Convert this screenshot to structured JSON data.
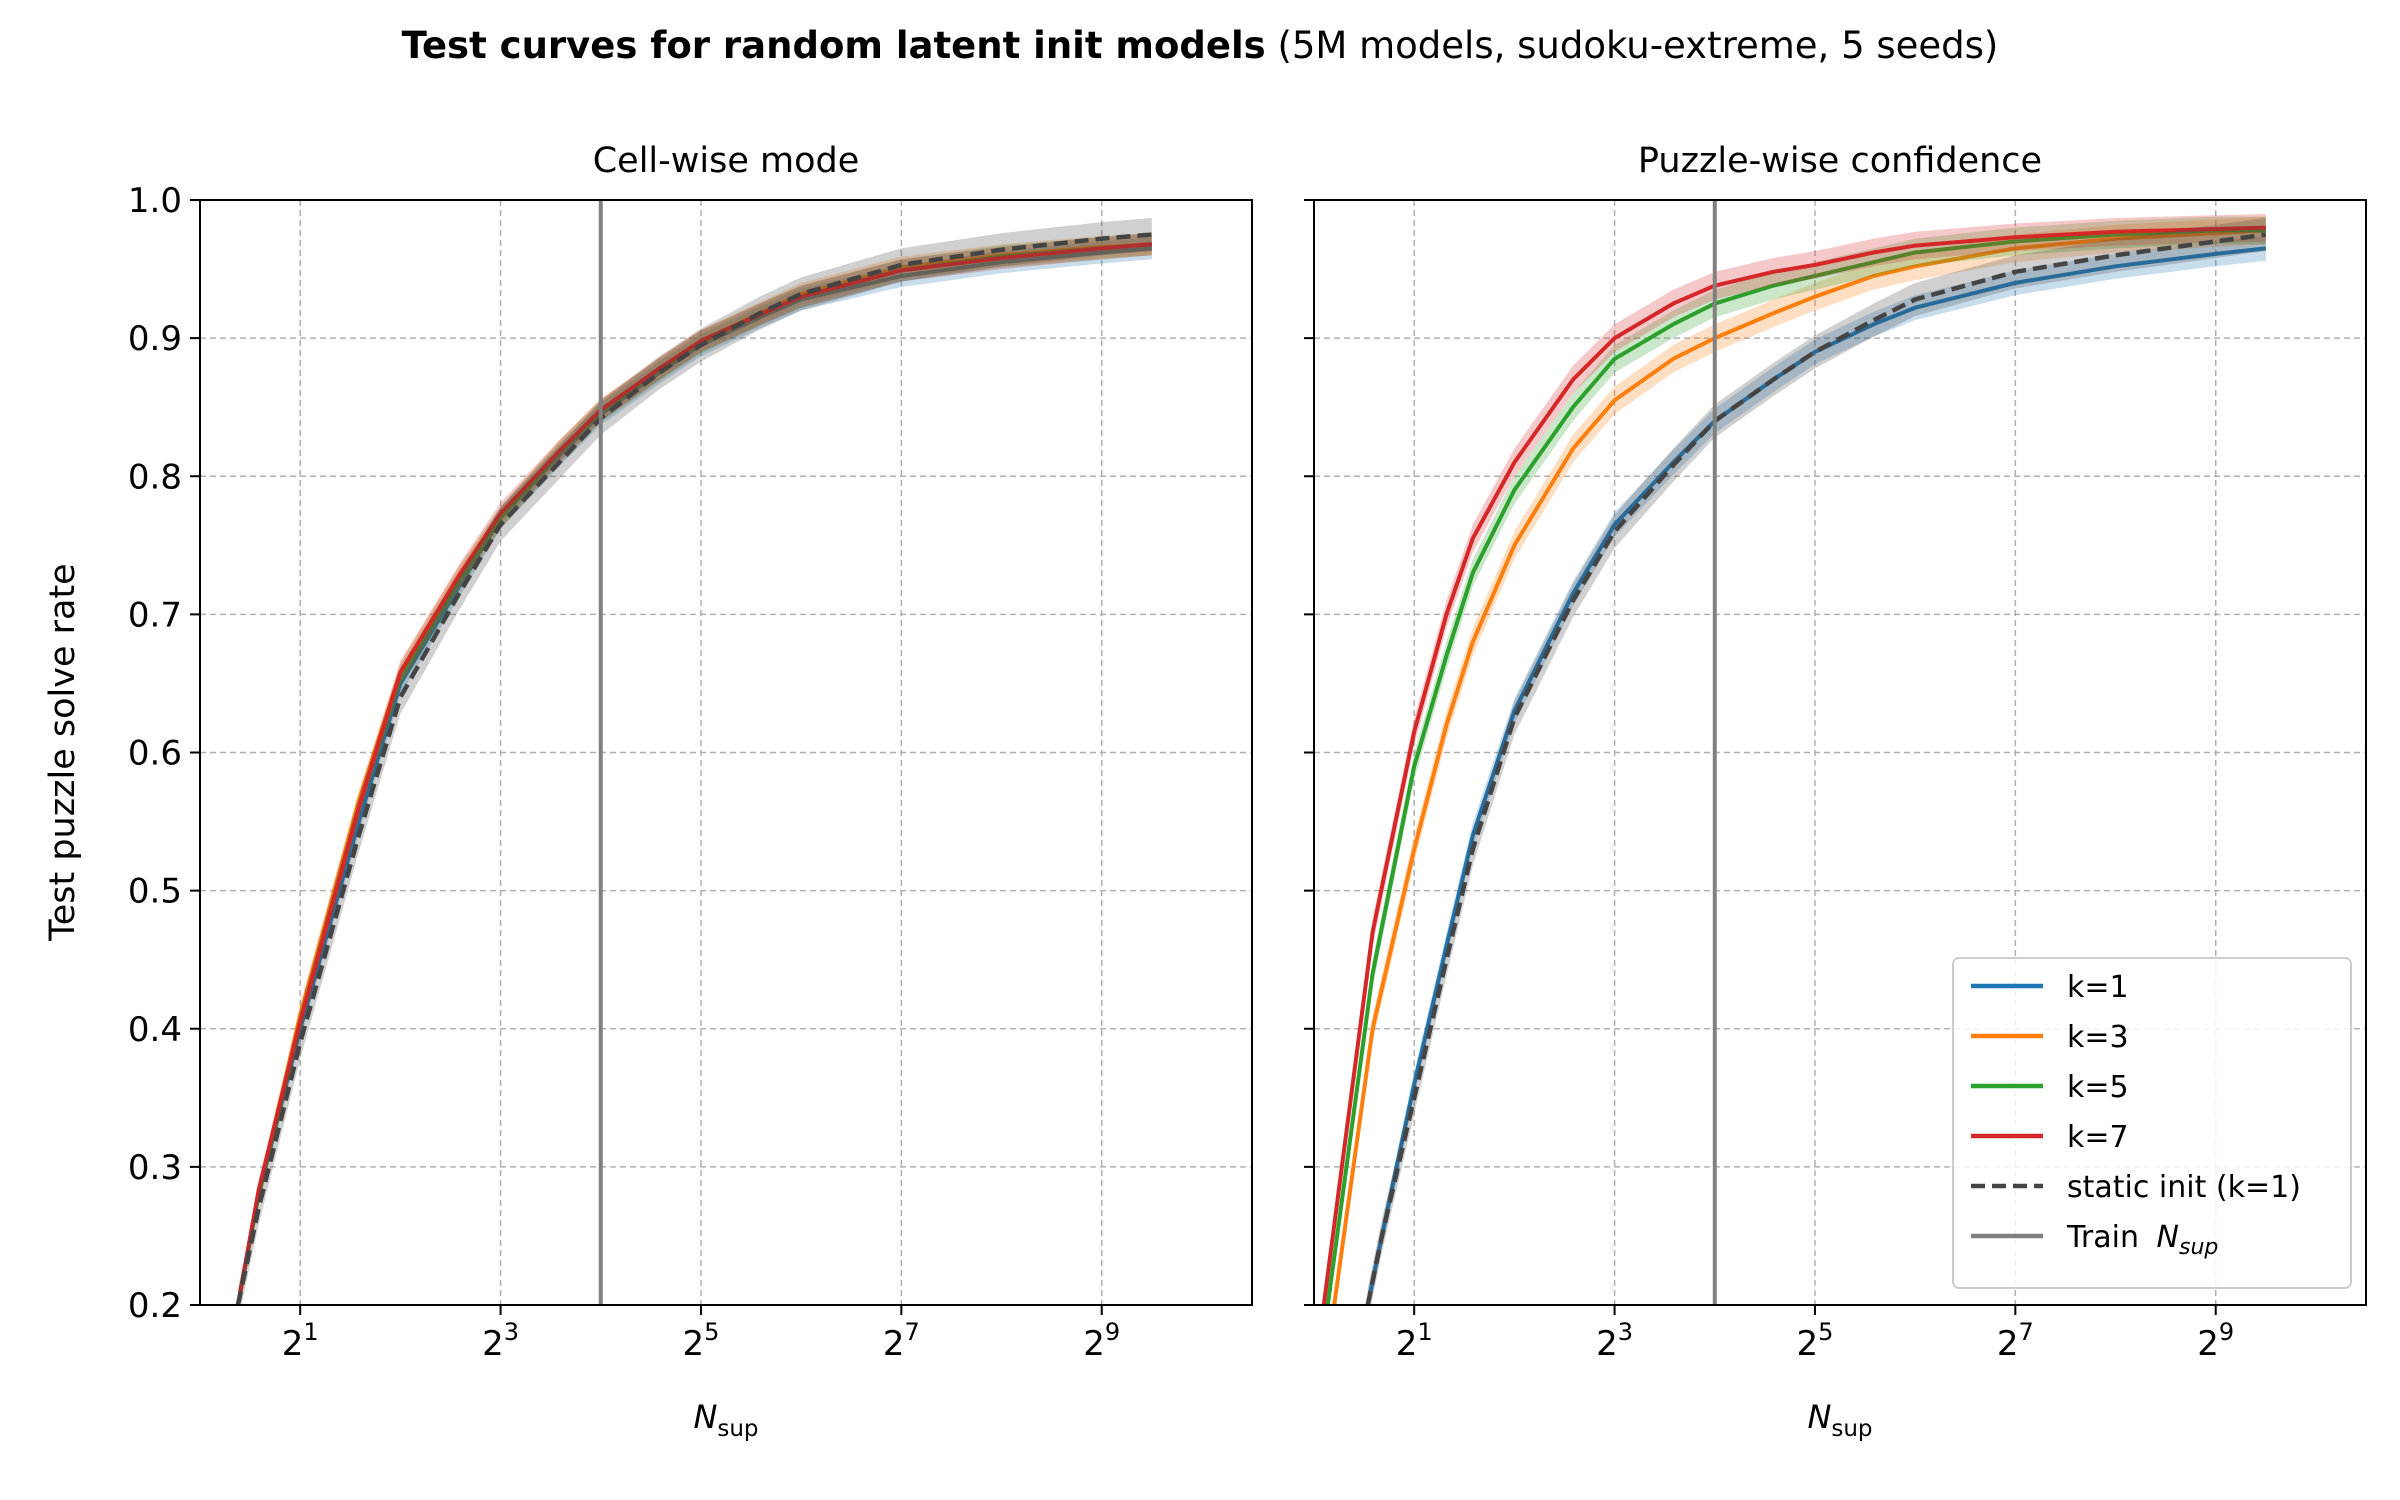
{
  "figure": {
    "title_bold": "Test curves for random latent init models",
    "title_rest": " (5M models, sudoku-extreme, 5 seeds)",
    "shared_ylabel": "Test puzzle solve rate"
  },
  "colors": {
    "k1": "#1f77b4",
    "k3": "#ff7f0e",
    "k5": "#2ca02c",
    "k7": "#d62728",
    "static": "#444444",
    "train_line": "#808080",
    "grid": "#b0b0b0"
  },
  "chart_data": [
    {
      "type": "line",
      "title": "Cell-wise mode",
      "xlabel_main": "N",
      "xlabel_sub": "sup",
      "ylabel": "Test puzzle solve rate",
      "x_scale": "log2",
      "xlim": [
        1.0,
        1448
      ],
      "ylim": [
        0.2,
        1.0
      ],
      "xticks": [
        {
          "value": 2,
          "base": "2",
          "exp": "1"
        },
        {
          "value": 8,
          "base": "2",
          "exp": "3"
        },
        {
          "value": 32,
          "base": "2",
          "exp": "5"
        },
        {
          "value": 128,
          "base": "2",
          "exp": "7"
        },
        {
          "value": 512,
          "base": "2",
          "exp": "9"
        }
      ],
      "yticks": [
        "0.2",
        "0.3",
        "0.4",
        "0.5",
        "0.6",
        "0.7",
        "0.8",
        "0.9",
        "1.0"
      ],
      "grid": true,
      "vline": {
        "x": 16,
        "name": "Train N_sup"
      },
      "x": [
        1.3,
        1.5,
        2,
        3,
        4,
        6,
        8,
        12,
        16,
        24,
        32,
        48,
        64,
        128,
        256,
        512,
        724
      ],
      "series": [
        {
          "name": "k=1",
          "key": "k1",
          "dashed": false,
          "band": 0.008,
          "values": [
            0.2,
            0.28,
            0.4,
            0.55,
            0.65,
            0.72,
            0.77,
            0.815,
            0.845,
            0.875,
            0.895,
            0.915,
            0.928,
            0.945,
            0.955,
            0.962,
            0.965
          ]
        },
        {
          "name": "k=3",
          "key": "k3",
          "dashed": false,
          "band": 0.008,
          "values": [
            0.2,
            0.28,
            0.41,
            0.565,
            0.658,
            0.727,
            0.77,
            0.818,
            0.848,
            0.878,
            0.898,
            0.918,
            0.932,
            0.951,
            0.96,
            0.966,
            0.968
          ]
        },
        {
          "name": "k=5",
          "key": "k5",
          "dashed": false,
          "band": 0.008,
          "values": [
            0.2,
            0.28,
            0.405,
            0.56,
            0.655,
            0.725,
            0.77,
            0.817,
            0.847,
            0.877,
            0.897,
            0.917,
            0.93,
            0.949,
            0.959,
            0.965,
            0.968
          ]
        },
        {
          "name": "k=7",
          "key": "k7",
          "dashed": false,
          "band": 0.008,
          "values": [
            0.2,
            0.283,
            0.405,
            0.56,
            0.658,
            0.728,
            0.773,
            0.818,
            0.848,
            0.878,
            0.898,
            0.917,
            0.93,
            0.949,
            0.958,
            0.965,
            0.968
          ]
        },
        {
          "name": "static init (k=1)",
          "key": "static",
          "dashed": true,
          "band": 0.012,
          "values": [
            0.2,
            0.27,
            0.39,
            0.54,
            0.64,
            0.715,
            0.765,
            0.81,
            0.842,
            0.875,
            0.895,
            0.918,
            0.932,
            0.953,
            0.964,
            0.972,
            0.975
          ]
        }
      ]
    },
    {
      "type": "line",
      "title": "Puzzle-wise confidence",
      "xlabel_main": "N",
      "xlabel_sub": "sup",
      "x_scale": "log2",
      "xlim": [
        1.0,
        1448
      ],
      "ylim": [
        0.2,
        1.0
      ],
      "xticks": [
        {
          "value": 2,
          "base": "2",
          "exp": "1"
        },
        {
          "value": 8,
          "base": "2",
          "exp": "3"
        },
        {
          "value": 32,
          "base": "2",
          "exp": "5"
        },
        {
          "value": 128,
          "base": "2",
          "exp": "7"
        },
        {
          "value": 512,
          "base": "2",
          "exp": "9"
        }
      ],
      "yticks": [
        "0.2",
        "0.3",
        "0.4",
        "0.5",
        "0.6",
        "0.7",
        "0.8",
        "0.9",
        "1.0"
      ],
      "grid": true,
      "vline": {
        "x": 16,
        "name": "Train N_sup"
      },
      "legend": {
        "placement": "lower right",
        "train_label": "Train ",
        "train_label_italic": "N",
        "train_label_sub": "sup"
      },
      "series": [
        {
          "name": "k=1",
          "key": "k1",
          "dashed": false,
          "band": 0.009,
          "x": [
            1.45,
            1.6,
            2,
            2.5,
            3,
            4,
            6,
            8,
            12,
            16,
            24,
            32,
            48,
            64,
            128,
            256,
            512,
            724
          ],
          "values": [
            0.2,
            0.25,
            0.36,
            0.46,
            0.54,
            0.63,
            0.715,
            0.765,
            0.81,
            0.84,
            0.87,
            0.89,
            0.91,
            0.922,
            0.94,
            0.952,
            0.961,
            0.965
          ]
        },
        {
          "name": "k=3",
          "key": "k3",
          "dashed": false,
          "band": 0.01,
          "x": [
            1.15,
            1.5,
            2,
            2.5,
            3,
            4,
            6,
            8,
            12,
            16,
            24,
            32,
            48,
            64,
            128,
            256,
            512,
            724
          ],
          "values": [
            0.2,
            0.4,
            0.53,
            0.62,
            0.68,
            0.75,
            0.82,
            0.855,
            0.885,
            0.9,
            0.918,
            0.93,
            0.945,
            0.952,
            0.965,
            0.972,
            0.976,
            0.978
          ]
        },
        {
          "name": "k=5",
          "key": "k5",
          "dashed": false,
          "band": 0.01,
          "x": [
            1.1,
            1.5,
            2,
            2.5,
            3,
            4,
            6,
            8,
            12,
            16,
            24,
            32,
            48,
            64,
            128,
            256,
            512,
            724
          ],
          "values": [
            0.2,
            0.44,
            0.59,
            0.67,
            0.73,
            0.79,
            0.85,
            0.885,
            0.91,
            0.925,
            0.938,
            0.945,
            0.955,
            0.962,
            0.97,
            0.975,
            0.978,
            0.978
          ]
        },
        {
          "name": "k=7",
          "key": "k7",
          "dashed": false,
          "band": 0.01,
          "x": [
            1.07,
            1.5,
            2,
            2.5,
            3,
            4,
            6,
            8,
            12,
            16,
            24,
            32,
            48,
            64,
            128,
            256,
            512,
            724
          ],
          "values": [
            0.2,
            0.47,
            0.615,
            0.7,
            0.755,
            0.81,
            0.87,
            0.9,
            0.925,
            0.938,
            0.948,
            0.953,
            0.962,
            0.967,
            0.973,
            0.977,
            0.979,
            0.98
          ]
        },
        {
          "name": "static init (k=1)",
          "key": "static",
          "dashed": true,
          "band": 0.012,
          "x": [
            1.45,
            1.6,
            2,
            2.5,
            3,
            4,
            6,
            8,
            12,
            16,
            24,
            32,
            48,
            64,
            128,
            256,
            512,
            724
          ],
          "values": [
            0.2,
            0.25,
            0.35,
            0.45,
            0.53,
            0.625,
            0.71,
            0.76,
            0.808,
            0.84,
            0.87,
            0.89,
            0.913,
            0.928,
            0.948,
            0.96,
            0.97,
            0.975
          ]
        }
      ]
    }
  ]
}
